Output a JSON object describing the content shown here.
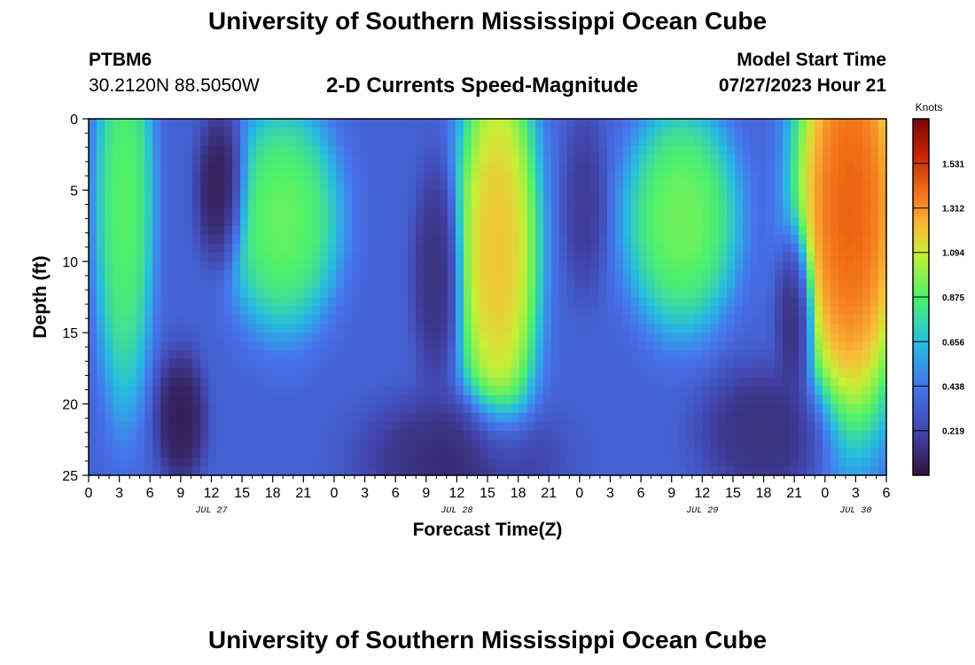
{
  "page": {
    "title_top": "University of Southern Mississippi Ocean Cube",
    "title_bottom": "University of Southern Mississippi Ocean Cube",
    "station_id": "PTBM6",
    "coords": "30.2120N  88.5050W",
    "plot_title": "2-D Currents Speed-Magnitude",
    "model_start_label": "Model Start Time",
    "model_start_value": "07/27/2023 Hour 21"
  },
  "chart_data": {
    "type": "heatmap",
    "title": "2-D Currents Speed-Magnitude",
    "xlabel": "Forecast Time(Z)",
    "ylabel": "Depth (ft)",
    "x_range_hours": [
      0,
      78
    ],
    "y_range": [
      0,
      25
    ],
    "y_ticks": [
      "0",
      "5",
      "10",
      "15",
      "20",
      "25"
    ],
    "x_ticks": [
      "0",
      "3",
      "6",
      "9",
      "12",
      "15",
      "18",
      "21",
      "0",
      "3",
      "6",
      "9",
      "12",
      "15",
      "18",
      "21",
      "0",
      "3",
      "6",
      "9",
      "12",
      "15",
      "18",
      "21",
      "0",
      "3",
      "6"
    ],
    "date_labels": [
      {
        "label": "JUL 27",
        "hour": 12
      },
      {
        "label": "JUL 28",
        "hour": 36
      },
      {
        "label": "JUL 29",
        "hour": 60
      },
      {
        "label": "JUL 30",
        "hour": 75
      }
    ],
    "colorbar": {
      "unit": "Knots",
      "min": 0,
      "max": 1.75,
      "ticks": [
        "1.531",
        "1.312",
        "1.094",
        "0.875",
        "0.656",
        "0.438",
        "0.219"
      ]
    },
    "features": [
      {
        "hour": 3.5,
        "depth": 6.0,
        "speed": 0.95,
        "wx": 1.8,
        "wd": 9.0
      },
      {
        "hour": 13,
        "depth": 5.0,
        "speed": 0.0,
        "wx": 1.6,
        "wd": 3.5
      },
      {
        "hour": 9,
        "depth": 21.0,
        "speed": 0.02,
        "wx": 1.6,
        "wd": 3.0
      },
      {
        "hour": 19,
        "depth": 7.0,
        "speed": 0.98,
        "wx": 3.5,
        "wd": 5.0
      },
      {
        "hour": 34,
        "depth": 11.0,
        "speed": 0.1,
        "wx": 1.5,
        "wd": 5.0
      },
      {
        "hour": 36,
        "depth": 24.0,
        "speed": 0.08,
        "wx": 6.0,
        "wd": 3.0
      },
      {
        "hour": 40,
        "depth": 9.0,
        "speed": 1.3,
        "wx": 2.6,
        "wd": 9.0
      },
      {
        "hour": 48.5,
        "depth": 6.0,
        "speed": 0.15,
        "wx": 1.3,
        "wd": 4.0
      },
      {
        "hour": 58,
        "depth": 7.0,
        "speed": 1.0,
        "wx": 3.5,
        "wd": 5.0
      },
      {
        "hour": 66,
        "depth": 22.0,
        "speed": 0.1,
        "wx": 4.0,
        "wd": 3.0
      },
      {
        "hour": 69,
        "depth": 14.0,
        "speed": 0.06,
        "wx": 1.2,
        "wd": 4.0
      },
      {
        "hour": 74.5,
        "depth": 6.0,
        "speed": 1.55,
        "wx": 3.5,
        "wd": 10.0
      }
    ]
  }
}
